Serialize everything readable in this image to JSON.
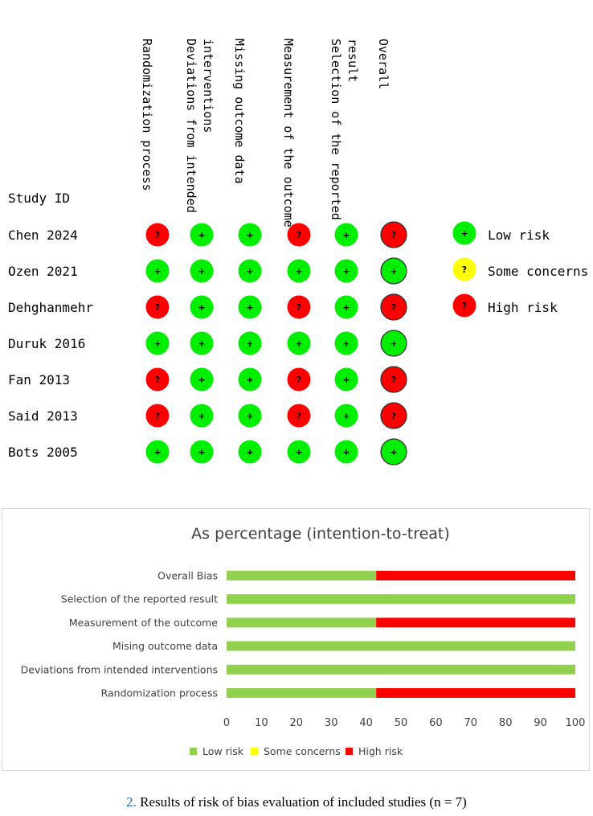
{
  "traffic_light": {
    "header_label": "Study ID",
    "domains": [
      {
        "lines": [
          "Randomization process"
        ]
      },
      {
        "lines": [
          "Deviations from intended",
          "interventions"
        ]
      },
      {
        "lines": [
          "Missing outcome data"
        ]
      },
      {
        "lines": [
          "Measurement of the outcome"
        ]
      },
      {
        "lines": [
          "Selection of the reported",
          "result"
        ]
      },
      {
        "lines": [
          "Overall"
        ]
      }
    ],
    "studies": [
      {
        "name": "Chen 2024",
        "judgements": [
          "high",
          "low",
          "low",
          "high",
          "low",
          "high"
        ]
      },
      {
        "name": "Ozen 2021",
        "judgements": [
          "low",
          "low",
          "low",
          "low",
          "low",
          "low"
        ]
      },
      {
        "name": "Dehghanmehr",
        "judgements": [
          "high",
          "low",
          "low",
          "high",
          "low",
          "high"
        ]
      },
      {
        "name": "Duruk 2016",
        "judgements": [
          "low",
          "low",
          "low",
          "low",
          "low",
          "low"
        ]
      },
      {
        "name": "Fan 2013",
        "judgements": [
          "high",
          "low",
          "low",
          "high",
          "low",
          "high"
        ]
      },
      {
        "name": "Said 2013",
        "judgements": [
          "high",
          "low",
          "low",
          "high",
          "low",
          "high"
        ]
      },
      {
        "name": "Bots 2005",
        "judgements": [
          "low",
          "low",
          "low",
          "low",
          "low",
          "low"
        ]
      }
    ],
    "legend": [
      {
        "key": "low",
        "label": "Low risk",
        "symbol": "+"
      },
      {
        "key": "some",
        "label": "Some concerns",
        "symbol": "?"
      },
      {
        "key": "high",
        "label": "High risk",
        "symbol": "?"
      }
    ],
    "symbols": {
      "low": "+",
      "some": "?",
      "high": "?"
    }
  },
  "chart_data": {
    "type": "bar",
    "orientation": "horizontal",
    "stacked": true,
    "title": "As percentage (intention-to-treat)",
    "categories": [
      "Overall Bias",
      "Selection of the reported result",
      "Measurement of the outcome",
      "Mising outcome data",
      "Deviations from intended interventions",
      "Randomization process"
    ],
    "series": [
      {
        "name": "Low risk",
        "color": "#92d050",
        "values": [
          42.9,
          100,
          42.9,
          100,
          100,
          42.9
        ]
      },
      {
        "name": "Some concerns",
        "color": "#ffff00",
        "values": [
          0,
          0,
          0,
          0,
          0,
          0
        ]
      },
      {
        "name": "High risk",
        "color": "#ff0000",
        "values": [
          57.1,
          0,
          57.1,
          0,
          0,
          57.1
        ]
      }
    ],
    "xlim": [
      0,
      100
    ],
    "xticks": [
      0,
      10,
      20,
      30,
      40,
      50,
      60,
      70,
      80,
      90,
      100
    ],
    "grid": false,
    "legend_position": "bottom"
  },
  "colors": {
    "low": "#00ee00",
    "some": "#ffff00",
    "high": "#ff0000"
  },
  "caption": {
    "number": "2.",
    "text": " Results of risk of bias evaluation of included studies (n = 7)"
  }
}
